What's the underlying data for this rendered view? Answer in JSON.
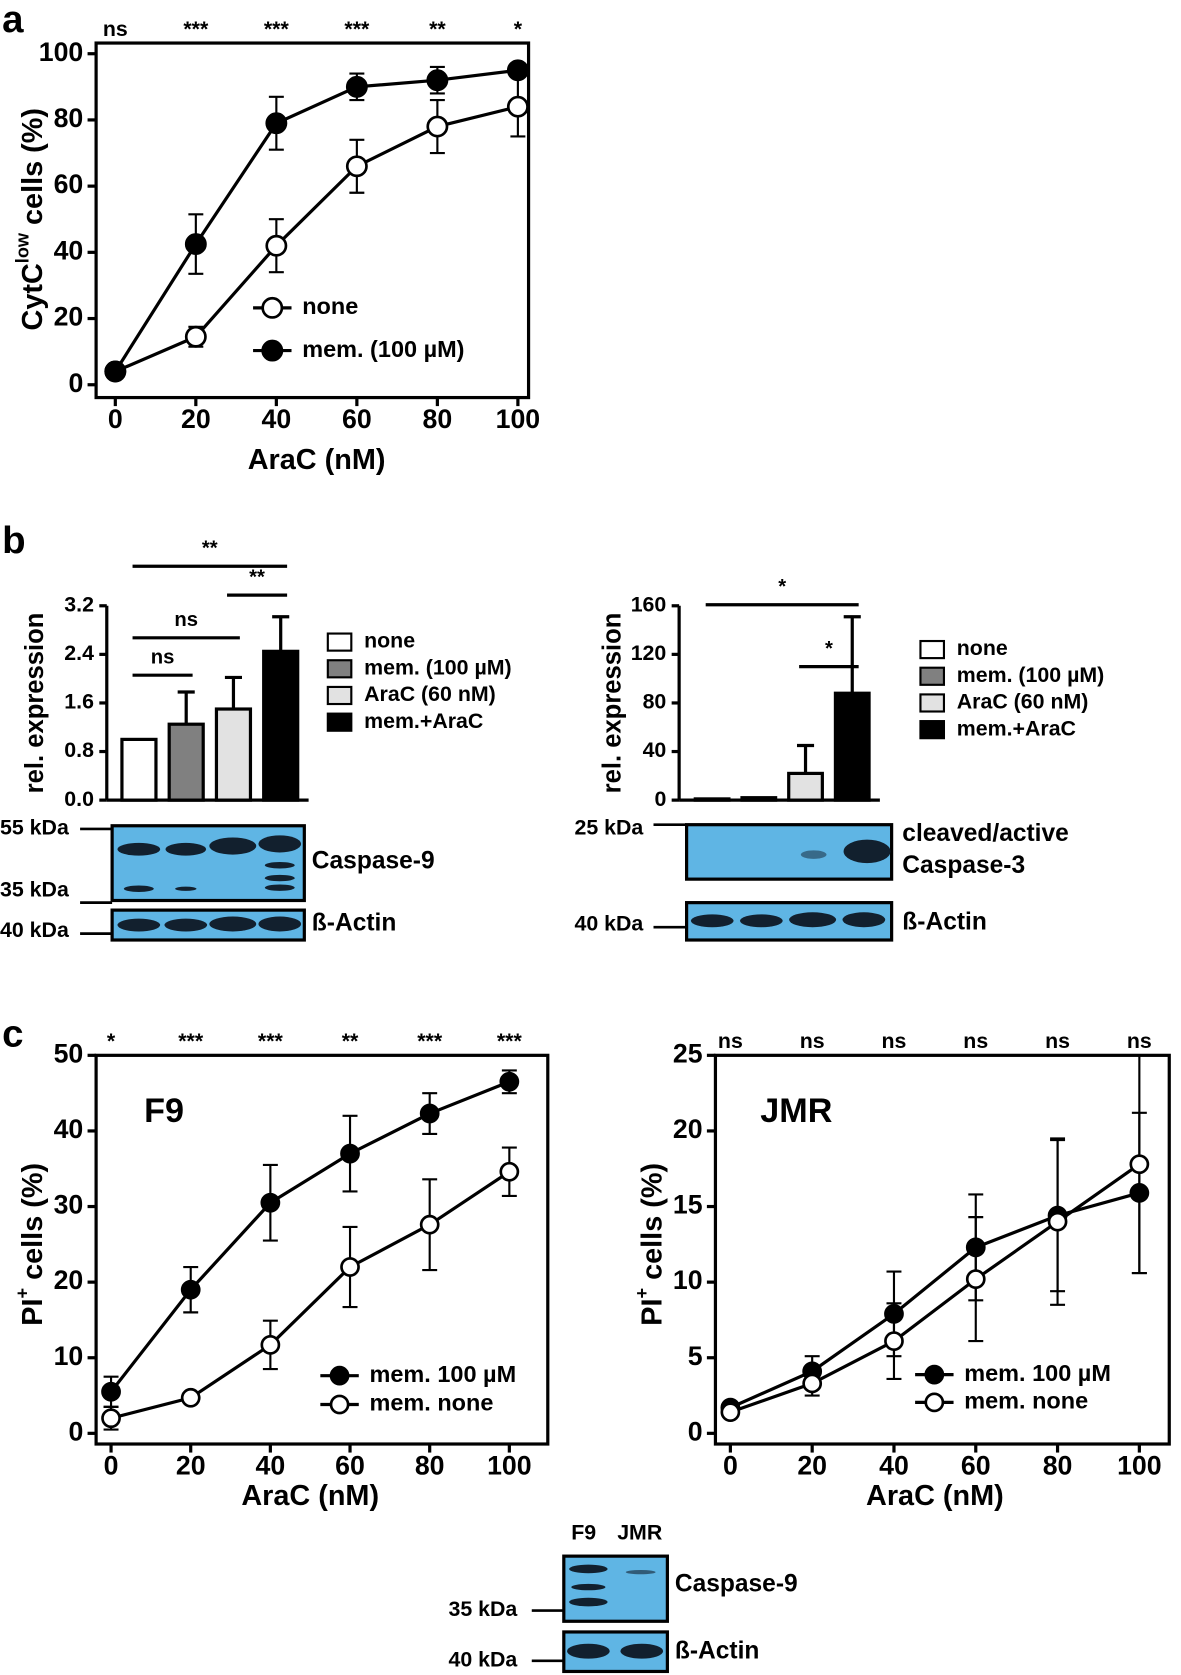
{
  "figure": {
    "panels": [
      "a",
      "b",
      "c"
    ],
    "blots": [
      {
        "labels": [
          "55 kDa",
          "35 kDa",
          "Caspase-9",
          "40 kDa",
          "ß-Actin"
        ]
      },
      {
        "labels": [
          "25 kDa",
          "cleaved/active",
          "Caspase-3",
          "40 kDa",
          "ß-Actin"
        ]
      },
      {
        "labels": [
          "F9",
          "JMR",
          "Caspase-9",
          "35 kDa",
          "40 kDa",
          "ß-Actin"
        ]
      }
    ]
  },
  "chart_data": [
    {
      "type": "line",
      "xlabel": "AraC (nM)",
      "ylabel": [
        "CytC",
        "low",
        " cells (%)"
      ],
      "x": [
        0,
        20,
        40,
        60,
        80,
        100
      ],
      "xlim": [
        0,
        100
      ],
      "xticks": [
        0,
        20,
        40,
        60,
        80,
        100
      ],
      "ylim": [
        0,
        100
      ],
      "yticks": [
        0,
        20,
        40,
        60,
        80,
        100
      ],
      "legend": "lower right",
      "significance": [
        "ns",
        "***",
        "***",
        "***",
        "**",
        "*"
      ],
      "series": [
        {
          "name": "none",
          "color": "#000000",
          "marker": "open",
          "values": [
            4,
            14.5,
            42,
            66,
            78,
            84
          ],
          "errors": [
            1,
            3,
            8,
            8,
            8,
            9
          ]
        },
        {
          "name": "mem. (100 µM)",
          "color": "#000000",
          "marker": "filled",
          "values": [
            4,
            42.5,
            79,
            90,
            92,
            95
          ],
          "errors": [
            1,
            9,
            8,
            4,
            4,
            2
          ]
        }
      ]
    },
    {
      "type": "bar",
      "ylabel": "rel. expression",
      "categories": [
        "none",
        "mem. (100 µM)",
        "AraC (60 nM)",
        "mem.+AraC"
      ],
      "values": [
        1.0,
        1.25,
        1.5,
        2.45
      ],
      "errors": [
        0,
        0.53,
        0.52,
        0.57
      ],
      "colors": [
        "#ffffff",
        "#808080",
        "#e2e2e2",
        "#000000"
      ],
      "ylim": [
        0,
        3.2
      ],
      "yticks": [
        {
          "value": 0,
          "label": "0.0"
        },
        {
          "value": 0.8,
          "label": "0.8"
        },
        {
          "value": 1.6,
          "label": "1.6"
        },
        {
          "value": 2.4,
          "label": "2.4"
        },
        {
          "value": 3.2,
          "label": "3.2"
        }
      ],
      "brackets": [
        {
          "from": 0,
          "to": 1,
          "label": "ns"
        },
        {
          "from": 0,
          "to": 2,
          "label": "ns"
        },
        {
          "from": 2,
          "to": 3,
          "label": "**"
        },
        {
          "from": 0,
          "to": 3,
          "label": "**"
        }
      ]
    },
    {
      "type": "bar",
      "ylabel": "rel. expression",
      "categories": [
        "none",
        "mem. (100 µM)",
        "AraC (60 nM)",
        "mem.+AraC"
      ],
      "values": [
        1,
        2,
        22,
        88
      ],
      "errors": [
        0,
        0,
        23,
        63
      ],
      "colors": [
        "#ffffff",
        "#808080",
        "#e2e2e2",
        "#000000"
      ],
      "ylim": [
        0,
        160
      ],
      "yticks": [
        0,
        40,
        80,
        120,
        160
      ],
      "brackets": [
        {
          "from": 2,
          "to": 3,
          "label": "*"
        },
        {
          "from": 0,
          "to": 3,
          "label": "*"
        }
      ]
    },
    {
      "type": "line",
      "xlabel": "AraC (nM)",
      "ylabel": [
        "PI",
        "+",
        " cells (%)"
      ],
      "annotation": "F9",
      "x": [
        0,
        20,
        40,
        60,
        80,
        100
      ],
      "xlim": [
        0,
        100
      ],
      "xticks": [
        0,
        20,
        40,
        60,
        80,
        100
      ],
      "ylim": [
        0,
        50
      ],
      "yticks": [
        0,
        10,
        20,
        30,
        40,
        50
      ],
      "legend": "lower right",
      "significance": [
        "*",
        "***",
        "***",
        "**",
        "***",
        "***"
      ],
      "series": [
        {
          "name": "mem. 100 µM",
          "color": "#000000",
          "marker": "filled",
          "values": [
            5.5,
            19,
            30.5,
            37,
            42.3,
            46.5
          ],
          "errors": [
            2,
            3,
            5,
            5,
            2.7,
            1.5
          ]
        },
        {
          "name": "mem.  none",
          "color": "#000000",
          "marker": "open",
          "values": [
            2,
            4.7,
            11.7,
            22,
            27.6,
            34.6
          ],
          "errors": [
            1.5,
            0.5,
            3.2,
            5.3,
            6,
            3.2
          ]
        }
      ]
    },
    {
      "type": "line",
      "xlabel": "AraC (nM)",
      "ylabel": [
        "PI",
        "+",
        " cells (%)"
      ],
      "annotation": "JMR",
      "x": [
        0,
        20,
        40,
        60,
        80,
        100
      ],
      "xlim": [
        0,
        100
      ],
      "xticks": [
        0,
        20,
        40,
        60,
        80,
        100
      ],
      "ylim": [
        0,
        25
      ],
      "yticks": [
        0,
        5,
        10,
        15,
        20,
        25
      ],
      "legend": "lower right",
      "significance": [
        "ns",
        "ns",
        "ns",
        "ns",
        "ns",
        "ns"
      ],
      "series": [
        {
          "name": "mem. 100 µM",
          "color": "#000000",
          "marker": "filled",
          "values": [
            1.7,
            4.1,
            7.9,
            12.3,
            14.4,
            15.9
          ],
          "errors": [
            0.3,
            1,
            2.8,
            3.5,
            5,
            5.3
          ]
        },
        {
          "name": "mem.  none",
          "color": "#000000",
          "marker": "open",
          "values": [
            1.4,
            3.3,
            6.1,
            10.2,
            14,
            17.8
          ],
          "errors": [
            0.3,
            0.8,
            2.5,
            4.1,
            5.5,
            7.2
          ]
        }
      ]
    }
  ]
}
